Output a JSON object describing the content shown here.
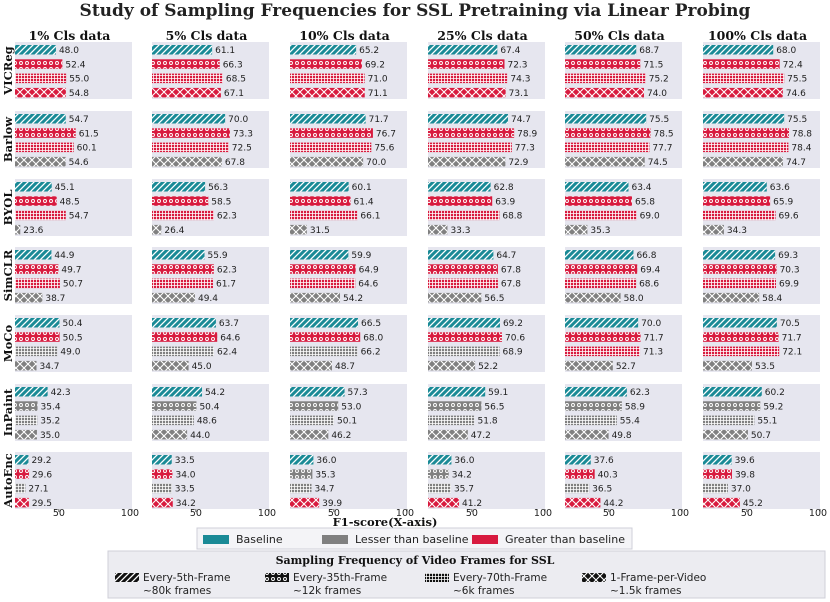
{
  "chart_data": {
    "type": "bar",
    "title": "Study of Sampling Frequencies for SSL Pretraining via Linear Probing",
    "xlabel": "F1-score(X-axis)",
    "xlim": [
      20,
      100
    ],
    "xticks": [
      50,
      100
    ],
    "columns": [
      "1% Cls data",
      "5% Cls data",
      "10% Cls data",
      "25% Cls data",
      "50% Cls data",
      "100% Cls data"
    ],
    "rows": [
      "VICReg",
      "Barlow",
      "BYOL",
      "SimCLR",
      "MoCo",
      "InPaint",
      "AutoEnc"
    ],
    "series": [
      {
        "name": "Every-5th-Frame",
        "frames": "~80k frames"
      },
      {
        "name": "Every-35th-Frame",
        "frames": "~12k frames"
      },
      {
        "name": "Every-70th-Frame",
        "frames": "~6k frames"
      },
      {
        "name": "1-Frame-per-Video",
        "frames": "~1.5k frames"
      }
    ],
    "values": {
      "VICReg": [
        [
          48.0,
          52.4,
          55.0,
          54.8
        ],
        [
          61.1,
          66.3,
          68.5,
          67.1
        ],
        [
          65.2,
          69.2,
          71.0,
          71.1
        ],
        [
          67.4,
          72.3,
          74.3,
          73.1
        ],
        [
          68.7,
          71.5,
          75.2,
          74.0
        ],
        [
          68.0,
          72.4,
          75.5,
          74.6
        ]
      ],
      "Barlow": [
        [
          54.7,
          61.5,
          60.1,
          54.6
        ],
        [
          70.0,
          73.3,
          72.5,
          67.8
        ],
        [
          71.7,
          76.7,
          75.6,
          70.0
        ],
        [
          74.7,
          78.9,
          77.3,
          72.9
        ],
        [
          75.5,
          78.5,
          77.7,
          74.5
        ],
        [
          75.5,
          78.8,
          78.4,
          74.7
        ]
      ],
      "BYOL": [
        [
          45.1,
          48.5,
          54.7,
          23.6
        ],
        [
          56.3,
          58.5,
          62.3,
          26.4
        ],
        [
          60.1,
          61.4,
          66.1,
          31.5
        ],
        [
          62.8,
          63.9,
          68.8,
          33.3
        ],
        [
          63.4,
          65.8,
          69.0,
          35.3
        ],
        [
          63.6,
          65.9,
          69.6,
          34.3
        ]
      ],
      "SimCLR": [
        [
          44.9,
          49.7,
          50.7,
          38.7
        ],
        [
          55.9,
          62.3,
          61.7,
          49.4
        ],
        [
          59.9,
          64.9,
          64.6,
          54.2
        ],
        [
          64.7,
          67.8,
          67.8,
          56.5
        ],
        [
          66.8,
          69.4,
          68.6,
          58.0
        ],
        [
          69.3,
          70.3,
          69.9,
          58.4
        ]
      ],
      "MoCo": [
        [
          50.4,
          50.5,
          49.0,
          34.7
        ],
        [
          63.7,
          64.6,
          62.4,
          45.0
        ],
        [
          66.5,
          68.0,
          66.2,
          48.7
        ],
        [
          69.2,
          70.6,
          68.9,
          52.2
        ],
        [
          70.0,
          71.7,
          71.3,
          52.7
        ],
        [
          70.5,
          71.7,
          72.1,
          53.5
        ]
      ],
      "InPaint": [
        [
          42.3,
          35.4,
          35.2,
          35.0
        ],
        [
          54.2,
          50.4,
          48.6,
          44.0
        ],
        [
          57.3,
          53.0,
          50.1,
          46.2
        ],
        [
          59.1,
          56.5,
          51.8,
          47.2
        ],
        [
          62.3,
          58.9,
          55.4,
          49.8
        ],
        [
          60.2,
          59.2,
          55.1,
          50.7
        ]
      ],
      "AutoEnc": [
        [
          29.2,
          29.6,
          27.1,
          29.5
        ],
        [
          33.5,
          34.0,
          33.5,
          34.2
        ],
        [
          36.0,
          35.3,
          34.7,
          39.9
        ],
        [
          36.0,
          34.2,
          35.7,
          41.2
        ],
        [
          37.6,
          40.3,
          36.5,
          44.2
        ],
        [
          39.6,
          39.8,
          37.0,
          45.2
        ]
      ]
    },
    "categories_legend": [
      {
        "name": "Baseline",
        "color": "#1a8a96"
      },
      {
        "name": "Lesser than baseline",
        "color": "#808080"
      },
      {
        "name": "Greater than baseline",
        "color": "#d81b3f"
      }
    ],
    "legend_title": "Sampling Frequency of Video Frames for SSL",
    "panel_bg": "#e6e6ef"
  }
}
